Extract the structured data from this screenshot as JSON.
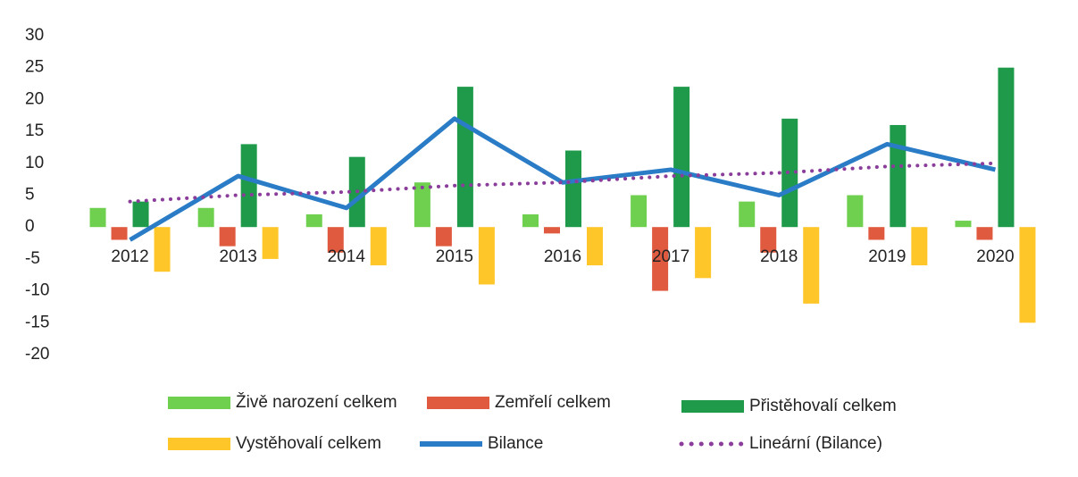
{
  "chart_data": {
    "type": "bar",
    "categories": [
      "2012",
      "2013",
      "2014",
      "2015",
      "2016",
      "2017",
      "2018",
      "2019",
      "2020"
    ],
    "series": [
      {
        "name": "Živě narození celkem",
        "color": "#6fcf4f",
        "values": [
          3,
          3,
          2,
          7,
          2,
          5,
          4,
          5,
          1
        ]
      },
      {
        "name": "Zemřelí celkem",
        "color": "#e05a3f",
        "values": [
          -2,
          -3,
          -4,
          -3,
          -1,
          -10,
          -4,
          -2,
          -2
        ]
      },
      {
        "name": "Přistěhovalí celkem",
        "color": "#1e9a4a",
        "values": [
          4,
          13,
          11,
          22,
          12,
          22,
          17,
          16,
          25
        ]
      },
      {
        "name": "Vystěhovalí celkem",
        "color": "#ffc629",
        "values": [
          -7,
          -5,
          -6,
          -9,
          -6,
          -8,
          -12,
          -6,
          -15
        ]
      },
      {
        "name": "Bilance",
        "type": "line",
        "color": "#2a7cc7",
        "values": [
          -2,
          8,
          3,
          17,
          7,
          9,
          5,
          13,
          9
        ]
      },
      {
        "name": "Lineární (Bilance)",
        "type": "line",
        "dotted": true,
        "color": "#8a3d9a",
        "values": [
          4,
          5,
          5.5,
          6.5,
          7,
          8,
          8.5,
          9.5,
          10
        ]
      }
    ],
    "ylim": [
      -20,
      30
    ],
    "yticks": [
      -20,
      -15,
      -10,
      -5,
      0,
      5,
      10,
      15,
      20,
      25,
      30
    ],
    "grid": false
  }
}
